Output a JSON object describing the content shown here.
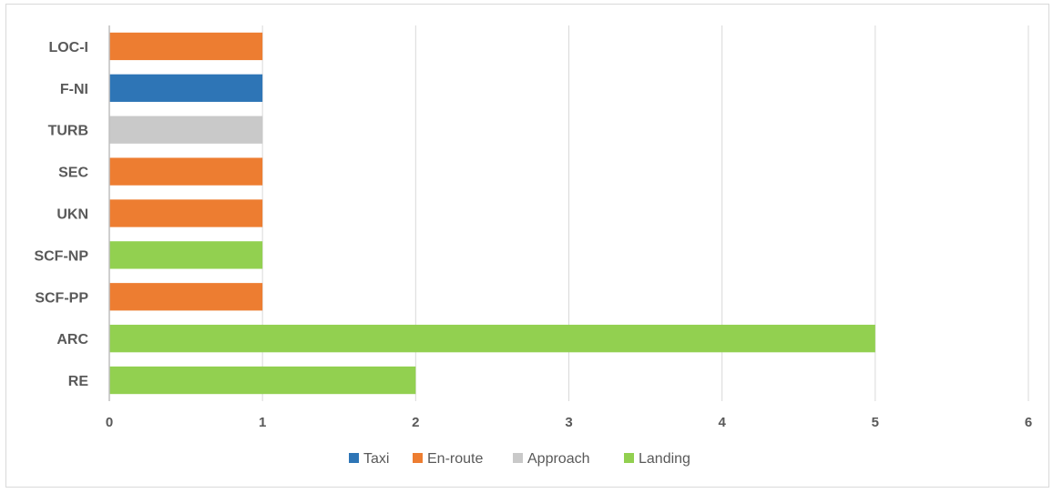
{
  "chart_data": {
    "type": "bar",
    "orientation": "horizontal",
    "stacked": true,
    "categories": [
      "LOC-I",
      "F-NI",
      "TURB",
      "SEC",
      "UKN",
      "SCF-NP",
      "SCF-PP",
      "ARC",
      "RE"
    ],
    "series": [
      {
        "name": "Taxi",
        "color": "#2e75b6",
        "values": [
          0,
          1,
          0,
          0,
          0,
          0,
          0,
          0,
          0
        ]
      },
      {
        "name": "En-route",
        "color": "#ed7d31",
        "values": [
          1,
          0,
          0,
          1,
          1,
          0,
          1,
          0,
          0
        ]
      },
      {
        "name": "Approach",
        "color": "#c9c9c9",
        "values": [
          0,
          0,
          1,
          0,
          0,
          0,
          0,
          0,
          0
        ]
      },
      {
        "name": "Landing",
        "color": "#92d050",
        "values": [
          0,
          0,
          0,
          0,
          0,
          1,
          0,
          5,
          2
        ]
      }
    ],
    "xlim": [
      0,
      6
    ],
    "xticks": [
      "0",
      "1",
      "2",
      "3",
      "4",
      "5",
      "6"
    ],
    "grid": true,
    "legend_position": "bottom",
    "title": "",
    "xlabel": "",
    "ylabel": ""
  }
}
